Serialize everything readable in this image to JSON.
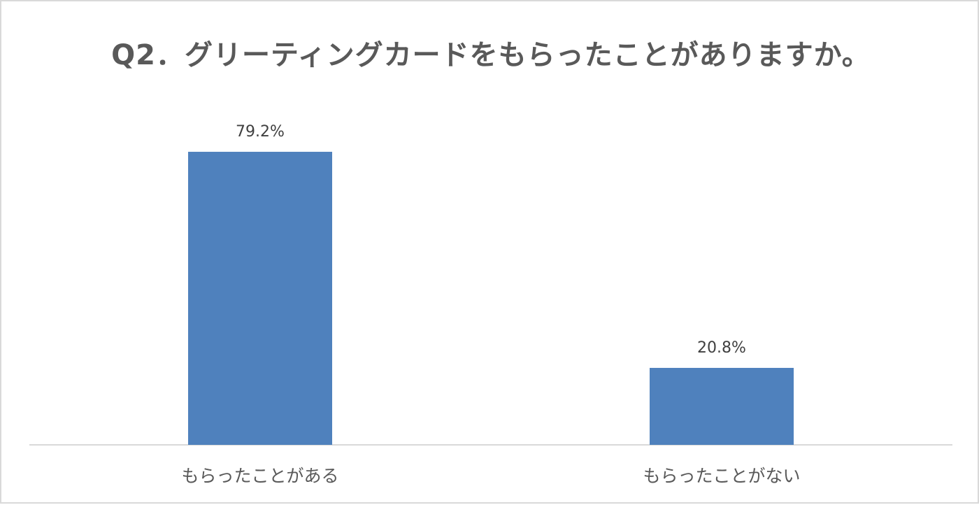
{
  "chart_data": {
    "type": "bar",
    "title": "Q2．グリーティングカードをもらったことがありますか。",
    "categories": [
      "もらったことがある",
      "もらったことがない"
    ],
    "values": [
      79.2,
      20.8
    ],
    "data_labels": [
      "79.2%",
      "20.8%"
    ],
    "unit": "%",
    "ylim": [
      0,
      100
    ],
    "grid": false,
    "legend": "none",
    "bar_color": "#4f81bd",
    "axis_color": "#d9d9d9"
  }
}
